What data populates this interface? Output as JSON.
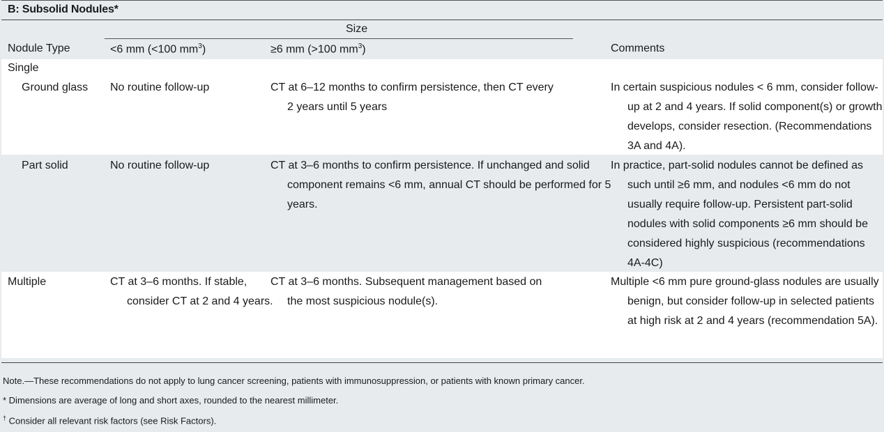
{
  "title": "B: Subsolid Nodules*",
  "header": {
    "size_group": "Size",
    "col_type": "Nodule Type",
    "col_small": "<6 mm (<100 mm",
    "col_small_sup": "3",
    "col_small_end": ")",
    "col_large": "≥6 mm (>100 mm",
    "col_large_sup": "3",
    "col_large_end": ")",
    "col_comments": "Comments"
  },
  "rows": {
    "single_label": "Single",
    "ground_glass": {
      "type": "Ground glass",
      "small": "No routine follow-up",
      "large": "CT at 6–12 months to confirm persistence, then CT every 2 years until 5 years",
      "comments": "In certain suspicious nodules < 6 mm, consider follow-up at 2 and 4 years. If solid component(s) or growth develops, consider resection. (Recommendations 3A and 4A)."
    },
    "part_solid": {
      "type": "Part solid",
      "small": "No routine follow-up",
      "large": "CT at 3–6 months to confirm persistence. If unchanged and solid component remains <6 mm, annual CT should be performed for 5 years.",
      "comments": "In practice, part-solid nodules cannot be defined as such until ≥6 mm, and nodules <6 mm do not usually require follow-up. Persistent part-solid nodules with solid components ≥6 mm should be considered highly suspicious (recommendations 4A-4C)"
    },
    "multiple": {
      "type": "Multiple",
      "small": "CT at 3–6 months. If stable, consider CT at 2 and 4 years.",
      "large": "CT at 3–6 months. Subsequent management based on the most suspicious nodule(s).",
      "comments": "Multiple <6 mm pure ground-glass nodules are usually benign, but consider follow-up in selected patients at high risk at 2 and 4 years (recommendation 5A)."
    }
  },
  "footer": {
    "note": "Note.—These recommendations do not apply to lung cancer screening, patients with immunosuppression, or patients with known primary cancer.",
    "asterisk": "* Dimensions are average of long and short axes, rounded to the nearest millimeter.",
    "dagger_mark": "†",
    "dagger": " Consider all relevant risk factors (see Risk Factors)."
  }
}
